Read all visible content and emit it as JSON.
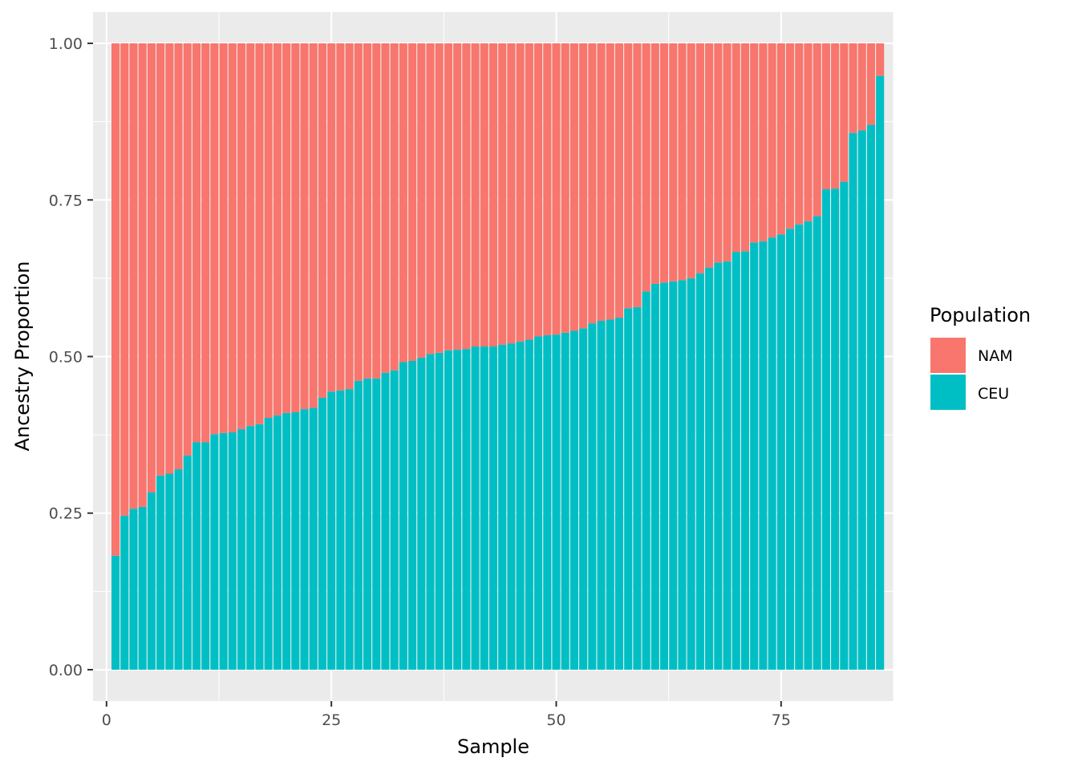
{
  "chart_data": {
    "type": "bar",
    "stacked": true,
    "xlabel": "Sample",
    "ylabel": "Ancestry Proportion",
    "xlim": [
      -1.5,
      87.5
    ],
    "ylim": [
      -0.05,
      1.05
    ],
    "x_ticks": [
      0,
      25,
      50,
      75
    ],
    "y_ticks": [
      0.0,
      0.25,
      0.5,
      0.75,
      1.0
    ],
    "x_tick_labels": [
      "0",
      "25",
      "50",
      "75"
    ],
    "y_tick_labels": [
      "0.00",
      "0.25",
      "0.50",
      "0.75",
      "1.00"
    ],
    "grid": true,
    "legend": {
      "title": "Population",
      "position": "right",
      "entries": [
        {
          "name": "NAM",
          "color": "#F8766D"
        },
        {
          "name": "CEU",
          "color": "#00BFC4"
        }
      ]
    },
    "x": [
      1,
      2,
      3,
      4,
      5,
      6,
      7,
      8,
      9,
      10,
      11,
      12,
      13,
      14,
      15,
      16,
      17,
      18,
      19,
      20,
      21,
      22,
      23,
      24,
      25,
      26,
      27,
      28,
      29,
      30,
      31,
      32,
      33,
      34,
      35,
      36,
      37,
      38,
      39,
      40,
      41,
      42,
      43,
      44,
      45,
      46,
      47,
      48,
      49,
      50,
      51,
      52,
      53,
      54,
      55,
      56,
      57,
      58,
      59,
      60,
      61,
      62,
      63,
      64,
      65,
      66,
      67,
      68,
      69,
      70,
      71,
      72,
      73,
      74,
      75,
      76,
      77,
      78,
      79,
      80,
      81,
      82,
      83,
      84,
      85,
      86
    ],
    "series": [
      {
        "name": "CEU",
        "color": "#00BFC4",
        "values": [
          0.182,
          0.246,
          0.257,
          0.26,
          0.283,
          0.31,
          0.313,
          0.32,
          0.342,
          0.363,
          0.363,
          0.376,
          0.378,
          0.379,
          0.384,
          0.389,
          0.392,
          0.402,
          0.406,
          0.41,
          0.411,
          0.416,
          0.418,
          0.434,
          0.444,
          0.446,
          0.448,
          0.461,
          0.465,
          0.465,
          0.474,
          0.478,
          0.491,
          0.493,
          0.498,
          0.504,
          0.506,
          0.51,
          0.511,
          0.512,
          0.516,
          0.516,
          0.516,
          0.519,
          0.521,
          0.524,
          0.527,
          0.532,
          0.534,
          0.535,
          0.538,
          0.541,
          0.545,
          0.553,
          0.557,
          0.559,
          0.562,
          0.577,
          0.579,
          0.604,
          0.616,
          0.618,
          0.62,
          0.622,
          0.625,
          0.633,
          0.642,
          0.65,
          0.652,
          0.667,
          0.668,
          0.682,
          0.684,
          0.69,
          0.695,
          0.704,
          0.711,
          0.716,
          0.724,
          0.767,
          0.768,
          0.779,
          0.857,
          0.861,
          0.87,
          0.948
        ]
      },
      {
        "name": "NAM",
        "color": "#F8766D",
        "values": [
          0.818,
          0.754,
          0.743,
          0.74,
          0.717,
          0.69,
          0.687,
          0.68,
          0.658,
          0.637,
          0.637,
          0.624,
          0.622,
          0.621,
          0.616,
          0.611,
          0.608,
          0.598,
          0.594,
          0.59,
          0.589,
          0.584,
          0.582,
          0.566,
          0.556,
          0.554,
          0.552,
          0.539,
          0.535,
          0.535,
          0.526,
          0.522,
          0.509,
          0.507,
          0.502,
          0.496,
          0.494,
          0.49,
          0.489,
          0.488,
          0.484,
          0.484,
          0.484,
          0.481,
          0.479,
          0.476,
          0.473,
          0.468,
          0.466,
          0.465,
          0.462,
          0.459,
          0.455,
          0.447,
          0.443,
          0.441,
          0.438,
          0.423,
          0.421,
          0.396,
          0.384,
          0.382,
          0.38,
          0.378,
          0.375,
          0.367,
          0.358,
          0.35,
          0.348,
          0.333,
          0.332,
          0.318,
          0.316,
          0.31,
          0.305,
          0.296,
          0.289,
          0.284,
          0.276,
          0.233,
          0.232,
          0.221,
          0.143,
          0.139,
          0.13,
          0.052
        ]
      }
    ]
  },
  "colors": {
    "panel_background": "#EBEBEB",
    "grid_major": "#FFFFFF",
    "grid_minor": "#F7F7F7",
    "axis_tick": "#333333"
  }
}
